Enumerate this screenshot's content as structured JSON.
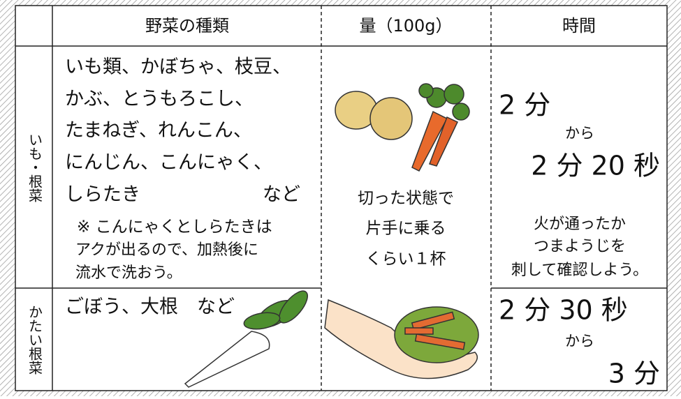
{
  "header": {
    "columns": [
      "野菜の種類",
      "量（100g）",
      "時間"
    ]
  },
  "rows": [
    {
      "label": "いも・根菜",
      "vegetables": [
        "いも類、かぼちゃ、枝豆、",
        "かぶ、とうもろこし、",
        "たまねぎ、れんこん、",
        "にんじん、こんにゃく、",
        "しらたき"
      ],
      "etc": "など",
      "note": [
        "※ こんにゃくとしらたきは",
        "アクが出るので、加熱後に",
        "流水で洗おう。"
      ],
      "time": [
        "2 分",
        "から",
        "2 分 20 秒"
      ],
      "time_note": [
        "火が通ったか",
        "つまようじを",
        "刺して確認しよう。"
      ]
    },
    {
      "label": "かたい根菜",
      "vegetables": [
        "ごぼう、大根　など"
      ],
      "time": [
        "2 分 30 秒",
        "から",
        "3 分"
      ]
    }
  ],
  "amount": [
    "切った状態で",
    "片手に乗る",
    "くらい１杯"
  ]
}
